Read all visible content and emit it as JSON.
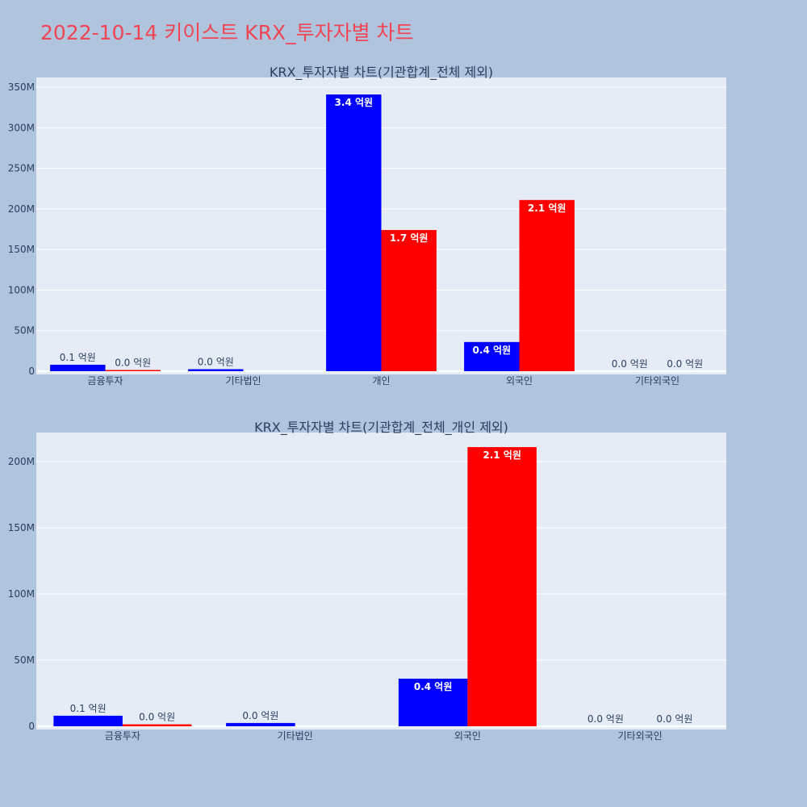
{
  "page_title": "2022-10-14 키이스트 KRX_투자자별 차트",
  "colors": {
    "buy": "#0000ff",
    "sell": "#ff0000",
    "plot_bg": "#e5ecf6",
    "page_bg": "#b0c4de",
    "title": "#ef4554"
  },
  "chart_data": [
    {
      "type": "bar",
      "title": "KRX_투자자별 차트(기관합계_전체 제외)",
      "categories": [
        "금융투자",
        "기타법인",
        "개인",
        "외국인",
        "기타외국인"
      ],
      "ylim": [
        0,
        362000000
      ],
      "yticks": [
        0,
        50000000,
        100000000,
        150000000,
        200000000,
        250000000,
        300000000,
        350000000
      ],
      "ytick_labels": [
        "0",
        "50M",
        "100M",
        "150M",
        "200M",
        "250M",
        "300M",
        "350M"
      ],
      "grid": true,
      "series": [
        {
          "color": "#0000ff",
          "values": [
            8000000,
            2500000,
            341000000,
            36000000,
            0
          ],
          "labels": [
            "0.1 억원",
            "0.0 억원",
            "3.4 억원",
            "0.4 억원",
            "0.0 억원"
          ]
        },
        {
          "color": "#ff0000",
          "values": [
            1500000,
            0,
            174000000,
            211000000,
            0
          ],
          "labels": [
            "0.0 억원",
            "",
            "1.7 억원",
            "2.1 억원",
            "0.0 억원"
          ]
        }
      ]
    },
    {
      "type": "bar",
      "title": "KRX_투자자별 차트(기관합계_전체_개인 제외)",
      "categories": [
        "금융투자",
        "기타법인",
        "외국인",
        "기타외국인"
      ],
      "ylim": [
        0,
        222000000
      ],
      "yticks": [
        0,
        50000000,
        100000000,
        150000000,
        200000000
      ],
      "ytick_labels": [
        "0",
        "50M",
        "100M",
        "150M",
        "200M"
      ],
      "grid": true,
      "series": [
        {
          "color": "#0000ff",
          "values": [
            8000000,
            2500000,
            36000000,
            0
          ],
          "labels": [
            "0.1 억원",
            "0.0 억원",
            "0.4 억원",
            "0.0 억원"
          ]
        },
        {
          "color": "#ff0000",
          "values": [
            1500000,
            0,
            211000000,
            0
          ],
          "labels": [
            "0.0 억원",
            "",
            "2.1 억원",
            "0.0 억원"
          ]
        }
      ]
    }
  ]
}
